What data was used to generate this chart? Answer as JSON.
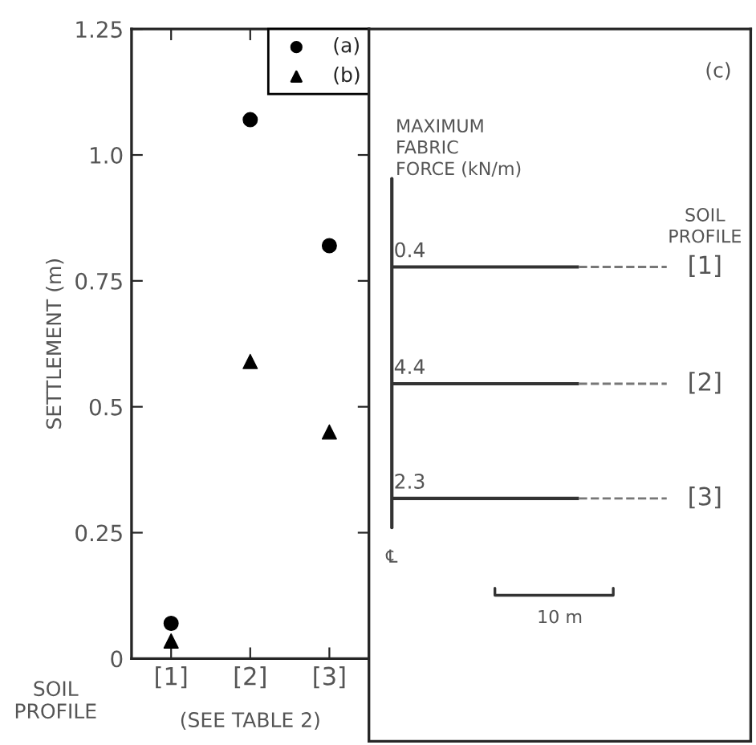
{
  "chart_data": [
    {
      "type": "scatter",
      "ylabel": "SETTLEMENT (m)",
      "xlabel": "SOIL PROFILE",
      "categories": [
        "[1]",
        "[2]",
        "[3]"
      ],
      "series": [
        {
          "name": "(a)",
          "color": "#000000",
          "marker": "circle",
          "values": [
            0.07,
            1.07,
            0.82
          ]
        },
        {
          "name": "(b)",
          "color": "#000000",
          "marker": "triangle",
          "values": [
            0.035,
            0.59,
            0.45
          ]
        }
      ],
      "ylim": [
        0,
        1.25
      ],
      "yticks": [
        0,
        0.25,
        0.5,
        0.75,
        {
          "value": 1.0,
          "label": "1.0"
        },
        1.25
      ],
      "annotations": [
        "(SEE TABLE 2)"
      ],
      "legend": "top right",
      "grid": false
    },
    {
      "type": "other",
      "title": "(c)",
      "categories": [
        "[1]",
        "[2]",
        "[3]"
      ],
      "values": [
        0.4,
        4.4,
        2.3
      ],
      "data_labels": true,
      "annotations": [
        "MAXIMUM\nFABRIC\nFORCE (kN/m)",
        "SOIL\nPROFILE",
        "℄",
        "10 m"
      ]
    }
  ]
}
